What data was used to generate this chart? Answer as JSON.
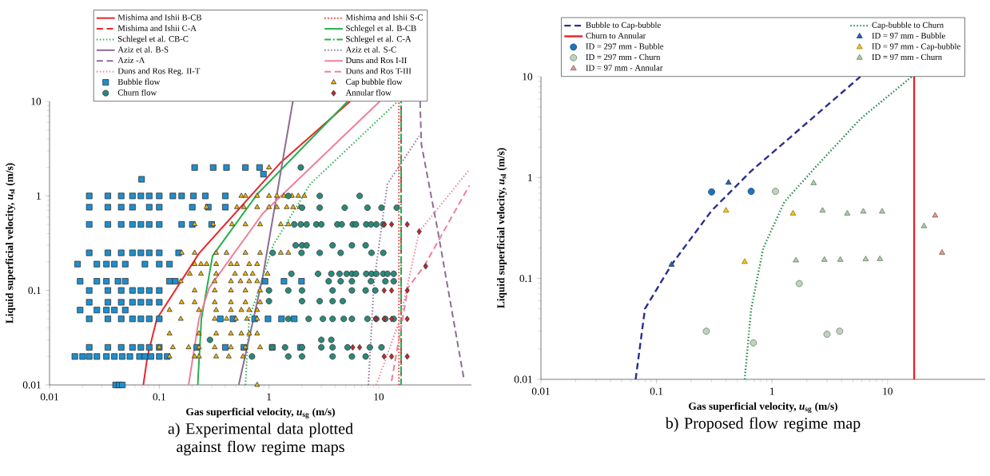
{
  "chart_data": [
    {
      "type": "scatter",
      "title": "a) Experimental data plotted against flow regime maps",
      "xlabel": "Gas superficial velocity, *u*$_{sg}$ (m/s)",
      "ylabel": "Liquid superficial velocity, *u*$_{sl}$ (m/s)",
      "log": "xy",
      "legend": "top",
      "xlim": [
        0.01,
        70
      ],
      "ylim": [
        0.01,
        10
      ],
      "xticks": [
        0.01,
        0.1,
        1,
        10
      ],
      "yticks": [
        0.01,
        0.1,
        1,
        10
      ],
      "series": [
        {
          "name": "Mishima and Ishii B-CB",
          "type": "line",
          "line_style": "solid",
          "color": "#e8262b",
          "x": [
            0.0716,
            0.078,
            0.095,
            0.23,
            1.28,
            5.48
          ],
          "values": [
            0.01,
            0.02,
            0.05,
            0.246,
            2.26,
            10
          ]
        },
        {
          "name": "Mishima and Ishii S-C",
          "type": "line",
          "line_style": "dotted",
          "color": "#e8262b",
          "x": [
            15.3,
            15.3
          ],
          "values": [
            0.01,
            10
          ]
        },
        {
          "name": "Mishima and Ishii C-A",
          "type": "line",
          "line_style": "dashed",
          "color": "#e8262b",
          "x": [
            16,
            16
          ],
          "values": [
            0.01,
            10
          ]
        },
        {
          "name": "Schlegel et al. B-CB",
          "type": "line",
          "line_style": "solid",
          "color": "#22b14c",
          "x": [
            0.224,
            0.242,
            0.306,
            0.78,
            5.2
          ],
          "values": [
            0.01,
            0.05,
            0.232,
            1.04,
            10
          ]
        },
        {
          "name": "Schlegel et al. CB-C",
          "type": "line",
          "line_style": "dotted",
          "color": "#22b14c",
          "x": [
            0.61,
            0.66,
            1.09,
            2.38,
            14.9
          ],
          "values": [
            0.01,
            0.05,
            0.3,
            1.34,
            10
          ]
        },
        {
          "name": "Schlegel et al. C-A",
          "type": "line",
          "line_style": "dashdot",
          "color": "#22b14c",
          "x": [
            16,
            16
          ],
          "values": [
            0.01,
            10
          ]
        },
        {
          "name": "Aziz et al. B-S",
          "type": "line",
          "line_style": "solid",
          "color": "#8c6d93",
          "x": [
            0.53,
            0.875,
            1.65
          ],
          "values": [
            0.01,
            0.137,
            10
          ]
        },
        {
          "name": "Aziz et al. S-C",
          "type": "line",
          "line_style": "dotted",
          "color": "#8c6d93",
          "x": [
            8.05,
            9.06,
            12.0,
            23.4
          ],
          "values": [
            0.01,
            0.122,
            1.34,
            4.3
          ]
        },
        {
          "name": "Aziz -A",
          "type": "line",
          "line_style": "dashed",
          "color": "#8c6d93",
          "x": [
            23.8,
            24.5,
            34.4,
            59.6
          ],
          "values": [
            10,
            3.5,
            0.44,
            0.0118
          ]
        },
        {
          "name": "Duns and Ros I-II",
          "type": "line",
          "line_style": "solid",
          "color": "#ef7f9a",
          "x": [
            0.185,
            0.23,
            0.286,
            0.875,
            10.2
          ],
          "values": [
            0.01,
            0.05,
            0.107,
            0.65,
            10
          ]
        },
        {
          "name": "Duns and Ros Reg. II-T",
          "type": "line",
          "line_style": "dotted",
          "color": "#ef7f9a",
          "x": [
            9.5,
            15.7,
            23.4,
            67
          ],
          "values": [
            0.01,
            0.05,
            0.42,
            1.9
          ]
        },
        {
          "name": "Duns and Ros T-III",
          "type": "line",
          "line_style": "dashed",
          "color": "#ef7f9a",
          "x": [
            13.1,
            18.5,
            25.9,
            67
          ],
          "values": [
            0.011,
            0.107,
            0.18,
            1.29
          ]
        },
        {
          "name": "Bubble flow",
          "marker": "square",
          "color": "#1c8fce",
          "x": [
            0.21,
            0.31,
            0.41,
            0.61,
            0.82,
            0.89,
            0.069,
            0.023,
            0.034,
            0.045,
            0.057,
            0.068,
            0.081,
            0.1,
            0.133,
            0.16,
            0.205,
            0.263,
            0.4,
            0.023,
            0.034,
            0.045,
            0.057,
            0.081,
            0.1,
            0.2,
            0.28,
            0.4,
            0.023,
            0.034,
            0.045,
            0.057,
            0.068,
            0.081,
            0.1,
            0.16,
            0.2,
            0.3,
            0.023,
            0.034,
            0.045,
            0.057,
            0.068,
            0.081,
            0.1,
            0.15,
            0.018,
            0.027,
            0.033,
            0.039,
            0.049,
            0.074,
            0.1,
            0.124,
            0.019,
            0.027,
            0.033,
            0.042,
            0.049,
            0.124,
            0.14,
            0.92,
            1.37,
            1.98,
            0.023,
            0.034,
            0.045,
            0.057,
            0.068,
            0.081,
            0.1,
            0.023,
            0.034,
            0.045,
            0.057,
            0.068,
            0.081,
            0.1,
            0.019,
            0.027,
            0.033,
            0.039,
            0.049,
            0.023,
            0.034,
            0.045,
            0.057,
            0.068,
            0.081,
            0.1,
            0.36,
            0.47,
            0.74,
            0.98,
            1.3,
            1.7,
            0.023,
            0.034,
            0.045,
            0.057,
            0.068,
            0.081,
            0.1,
            0.22,
            0.4,
            0.59,
            1.07,
            1.94,
            0.017,
            0.02,
            0.023,
            0.027,
            0.033,
            0.039,
            0.046,
            0.054,
            0.066,
            0.074,
            0.084,
            0.1,
            0.118,
            0.04,
            0.043,
            0.046
          ],
          "values": [
            2,
            2,
            2,
            2,
            2,
            1.7,
            1.5,
            1,
            1,
            1,
            1,
            1,
            1,
            1,
            1,
            1,
            1,
            1,
            1,
            0.76,
            0.76,
            0.76,
            0.76,
            0.76,
            0.76,
            0.76,
            0.76,
            0.76,
            0.5,
            0.5,
            0.5,
            0.5,
            0.5,
            0.5,
            0.5,
            0.5,
            0.5,
            0.5,
            0.25,
            0.25,
            0.25,
            0.25,
            0.25,
            0.25,
            0.25,
            0.25,
            0.19,
            0.19,
            0.19,
            0.19,
            0.19,
            0.19,
            0.19,
            0.19,
            0.125,
            0.125,
            0.125,
            0.125,
            0.125,
            0.125,
            0.125,
            0.125,
            0.125,
            0.125,
            0.1,
            0.1,
            0.1,
            0.1,
            0.1,
            0.1,
            0.1,
            0.075,
            0.075,
            0.075,
            0.075,
            0.075,
            0.075,
            0.075,
            0.062,
            0.062,
            0.062,
            0.062,
            0.062,
            0.05,
            0.05,
            0.05,
            0.05,
            0.05,
            0.05,
            0.05,
            0.05,
            0.05,
            0.05,
            0.05,
            0.05,
            0.05,
            0.025,
            0.025,
            0.025,
            0.025,
            0.025,
            0.025,
            0.025,
            0.025,
            0.025,
            0.025,
            0.025,
            0.025,
            0.02,
            0.02,
            0.02,
            0.02,
            0.02,
            0.02,
            0.02,
            0.02,
            0.02,
            0.02,
            0.02,
            0.02,
            0.02,
            0.01,
            0.01,
            0.01
          ]
        },
        {
          "name": "Cap bubble flow",
          "marker": "triangle",
          "color": "#f2b705",
          "x": [
            1.0,
            0.56,
            0.61,
            0.78,
            1.0,
            1.18,
            1.37,
            1.62,
            1.85,
            2.1,
            0.27,
            0.51,
            0.59,
            0.78,
            1.0,
            1.18,
            1.45,
            1.66,
            1.9,
            0.21,
            0.31,
            0.46,
            0.61,
            0.83,
            1.28,
            1.5,
            0.16,
            0.21,
            0.33,
            0.41,
            0.61,
            0.83,
            1.28,
            1.5,
            0.21,
            0.24,
            0.27,
            0.33,
            0.45,
            0.51,
            0.66,
            0.78,
            0.19,
            0.24,
            0.33,
            0.49,
            0.61,
            0.71,
            0.97,
            0.157,
            0.32,
            0.45,
            0.55,
            0.66,
            0.78,
            0.21,
            0.32,
            0.45,
            0.61,
            0.83,
            0.16,
            0.21,
            0.32,
            0.45,
            0.61,
            0.83,
            0.124,
            0.23,
            0.33,
            0.45,
            0.56,
            0.66,
            0.78,
            0.157,
            0.32,
            0.41,
            0.5,
            0.63,
            0.78,
            0.124,
            0.23,
            0.33,
            0.45,
            0.56,
            0.66,
            0.78,
            0.1,
            0.133,
            0.185,
            0.23,
            0.32,
            0.45,
            0.61,
            0.83,
            0.124,
            0.21,
            0.23,
            0.33,
            0.43,
            0.58,
            0.7,
            0.78
          ],
          "values": [
            2,
            1,
            1,
            1,
            1,
            1,
            1,
            1,
            1,
            1,
            0.76,
            0.76,
            0.76,
            0.76,
            0.76,
            0.76,
            0.76,
            0.76,
            0.76,
            0.5,
            0.5,
            0.5,
            0.5,
            0.5,
            0.5,
            0.5,
            0.25,
            0.25,
            0.25,
            0.25,
            0.25,
            0.25,
            0.25,
            0.25,
            0.19,
            0.19,
            0.19,
            0.19,
            0.19,
            0.19,
            0.19,
            0.19,
            0.15,
            0.15,
            0.15,
            0.15,
            0.15,
            0.15,
            0.15,
            0.125,
            0.125,
            0.125,
            0.125,
            0.125,
            0.125,
            0.1,
            0.1,
            0.1,
            0.1,
            0.1,
            0.075,
            0.075,
            0.075,
            0.075,
            0.075,
            0.075,
            0.062,
            0.062,
            0.062,
            0.062,
            0.062,
            0.062,
            0.062,
            0.05,
            0.05,
            0.05,
            0.05,
            0.05,
            0.05,
            0.035,
            0.035,
            0.035,
            0.035,
            0.035,
            0.035,
            0.035,
            0.025,
            0.025,
            0.025,
            0.025,
            0.025,
            0.025,
            0.025,
            0.025,
            0.02,
            0.02,
            0.02,
            0.02,
            0.02,
            0.02,
            0.02,
            0.01
          ]
        },
        {
          "name": "Churn flow",
          "marker": "circle",
          "color": "#2a8a7a",
          "x": [
            1.95,
            1.5,
            2.9,
            6.7,
            2.0,
            2.9,
            4.9,
            7.9,
            10.6,
            14.6,
            1.7,
            1.95,
            2.2,
            2.7,
            3.0,
            4.2,
            4.6,
            5.8,
            6.2,
            7.7,
            8.5,
            9.5,
            11,
            1.75,
            2.0,
            2.2,
            3.8,
            5.7,
            7.6,
            1.08,
            1.98,
            2.9,
            4.5,
            8.6,
            11,
            1.6,
            2.8,
            3.7,
            4.4,
            5.1,
            5.7,
            6.2,
            7.7,
            8.6,
            9.5,
            11,
            12,
            13.7,
            3.5,
            4.5,
            5.7,
            8.5,
            11.5,
            13.7,
            1.0,
            1.5,
            2.0,
            3.8,
            5.7,
            7.6,
            9.3,
            1.0,
            2.0,
            2.9,
            3.8,
            4.7,
            1.5,
            2.3,
            3.1,
            3.8,
            4.8,
            5.7,
            7.9,
            9.5,
            11.5,
            13.7,
            0.29,
            3.0,
            3.7,
            1.07,
            1.4,
            2.0,
            3.0,
            3.8,
            5.2,
            8.3,
            10.6,
            0.7,
            1.5,
            2.0,
            3.8,
            5.7,
            7.6
          ],
          "values": [
            2,
            1,
            1,
            1,
            0.75,
            0.75,
            0.75,
            0.75,
            0.75,
            0.75,
            0.5,
            0.5,
            0.5,
            0.5,
            0.5,
            0.5,
            0.5,
            0.5,
            0.5,
            0.5,
            0.5,
            0.5,
            0.5,
            0.3,
            0.3,
            0.3,
            0.3,
            0.3,
            0.3,
            0.25,
            0.25,
            0.25,
            0.25,
            0.25,
            0.25,
            0.15,
            0.15,
            0.15,
            0.15,
            0.15,
            0.15,
            0.15,
            0.15,
            0.15,
            0.15,
            0.15,
            0.15,
            0.15,
            0.125,
            0.125,
            0.125,
            0.125,
            0.125,
            0.125,
            0.1,
            0.1,
            0.1,
            0.1,
            0.1,
            0.1,
            0.1,
            0.077,
            0.077,
            0.077,
            0.077,
            0.077,
            0.05,
            0.05,
            0.05,
            0.05,
            0.05,
            0.05,
            0.05,
            0.05,
            0.05,
            0.05,
            0.03,
            0.03,
            0.03,
            0.025,
            0.025,
            0.025,
            0.025,
            0.025,
            0.025,
            0.025,
            0.025,
            0.02,
            0.02,
            0.02,
            0.02,
            0.02,
            0.02
          ]
        },
        {
          "name": "Annular flow",
          "marker": "diamond",
          "color": "#c0282d",
          "x": [
            11.2,
            13.1,
            18.2,
            23.4,
            26.8,
            11.2,
            13.1,
            18.2,
            9.4,
            11.2,
            13.1,
            18.2,
            5.8,
            6.7,
            11.2,
            13.1,
            18.2
          ],
          "values": [
            0.5,
            0.5,
            0.5,
            0.42,
            0.18,
            0.1,
            0.1,
            0.1,
            0.05,
            0.05,
            0.05,
            0.05,
            0.025,
            0.025,
            0.02,
            0.02,
            0.02
          ]
        }
      ]
    },
    {
      "type": "scatter",
      "title": "b) Proposed flow regime map",
      "xlabel": "Gas superficial velocity, *u*$_{sg}$ (m/s)",
      "ylabel": "Liquid superficial velocity, *u*$_{sl}$ (m/s)",
      "log": "xy",
      "legend": "top",
      "xlim": [
        0.01,
        70
      ],
      "ylim": [
        0.01,
        10
      ],
      "xticks": [
        0.01,
        0.1,
        1,
        10
      ],
      "yticks": [
        0.01,
        0.1,
        1,
        10
      ],
      "series": [
        {
          "name": "Bubble to Cap-bubble",
          "type": "line",
          "line_style": "dashed",
          "color": "#2b2f8f",
          "x": [
            0.066,
            0.0795,
            0.135,
            0.3,
            0.66,
            2.34,
            5.81
          ],
          "values": [
            0.01,
            0.05,
            0.137,
            0.47,
            1.16,
            4.06,
            10
          ]
        },
        {
          "name": "Cap-bubble to Churn",
          "type": "line",
          "line_style": "dotted",
          "color": "#1f8a4c",
          "x": [
            0.58,
            0.66,
            0.84,
            1.28,
            2.34,
            5.81,
            16.2
          ],
          "values": [
            0.01,
            0.05,
            0.2,
            0.575,
            1.24,
            3.81,
            10
          ]
        },
        {
          "name": "Churn to Annular",
          "type": "line",
          "line_style": "solid",
          "color": "#ee1c25",
          "x": [
            17,
            17
          ],
          "values": [
            0.01,
            10
          ]
        },
        {
          "name": "ID = 97 mm - Bubble",
          "marker": "triangle",
          "color": "#2a62b0",
          "x": [
            0.42,
            0.135
          ],
          "values": [
            0.89,
            0.137
          ]
        },
        {
          "name": "ID = 297 mm - Bubble",
          "marker": "circle",
          "color": "#1e73be",
          "x": [
            0.3,
            0.66
          ],
          "values": [
            0.72,
            0.73
          ]
        },
        {
          "name": "ID = 97 mm - Cap-bubble",
          "marker": "triangle",
          "color": "#f7c31a",
          "x": [
            0.4,
            1.52,
            0.58
          ],
          "values": [
            0.47,
            0.44,
            0.146
          ]
        },
        {
          "name": "ID = 297 mm - Churn",
          "marker": "circle",
          "color": "#bcd4bc",
          "x": [
            1.07,
            0.27,
            0.69,
            1.72,
            2.99,
            3.85
          ],
          "values": [
            0.73,
            0.03,
            0.023,
            0.089,
            0.028,
            0.03
          ]
        },
        {
          "name": "ID = 97 mm - Churn",
          "marker": "triangle",
          "color": "#a9cfa9",
          "x": [
            2.29,
            2.74,
            4.48,
            6.17,
            8.97,
            20.7,
            1.61,
            2.84,
            3.9,
            6.47,
            8.59
          ],
          "values": [
            0.88,
            0.47,
            0.44,
            0.46,
            0.46,
            0.33,
            0.151,
            0.153,
            0.153,
            0.155,
            0.156
          ]
        },
        {
          "name": "ID = 97 mm - Annular",
          "marker": "triangle",
          "color": "#e59a8a",
          "x": [
            25.8,
            29.6
          ],
          "values": [
            0.42,
            0.18
          ]
        }
      ]
    }
  ]
}
